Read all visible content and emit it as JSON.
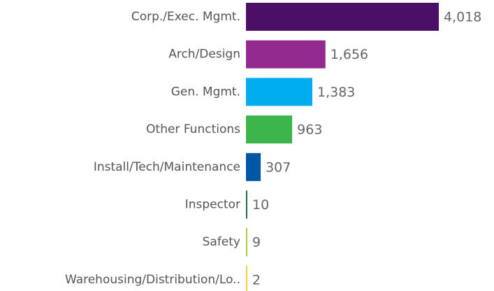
{
  "chart_data": {
    "type": "hbar",
    "categories": [
      "Corp./Exec. Mgmt.",
      "Arch/Design",
      "Gen. Mgmt.",
      "Other Functions",
      "Install/Tech/Maintenance",
      "Inspector",
      "Safety",
      "Warehousing/Distribution/Lo.."
    ],
    "values": [
      4018,
      1656,
      1383,
      963,
      307,
      10,
      9,
      2
    ],
    "value_labels": [
      "4,018",
      "1,656",
      "1,383",
      "963",
      "307",
      "10",
      "9",
      "2"
    ],
    "colors": [
      "#4a1068",
      "#922a8f",
      "#00adee",
      "#3cb54a",
      "#0057a6",
      "#1b6b40",
      "#a6ce39",
      "#f2d22e"
    ]
  }
}
